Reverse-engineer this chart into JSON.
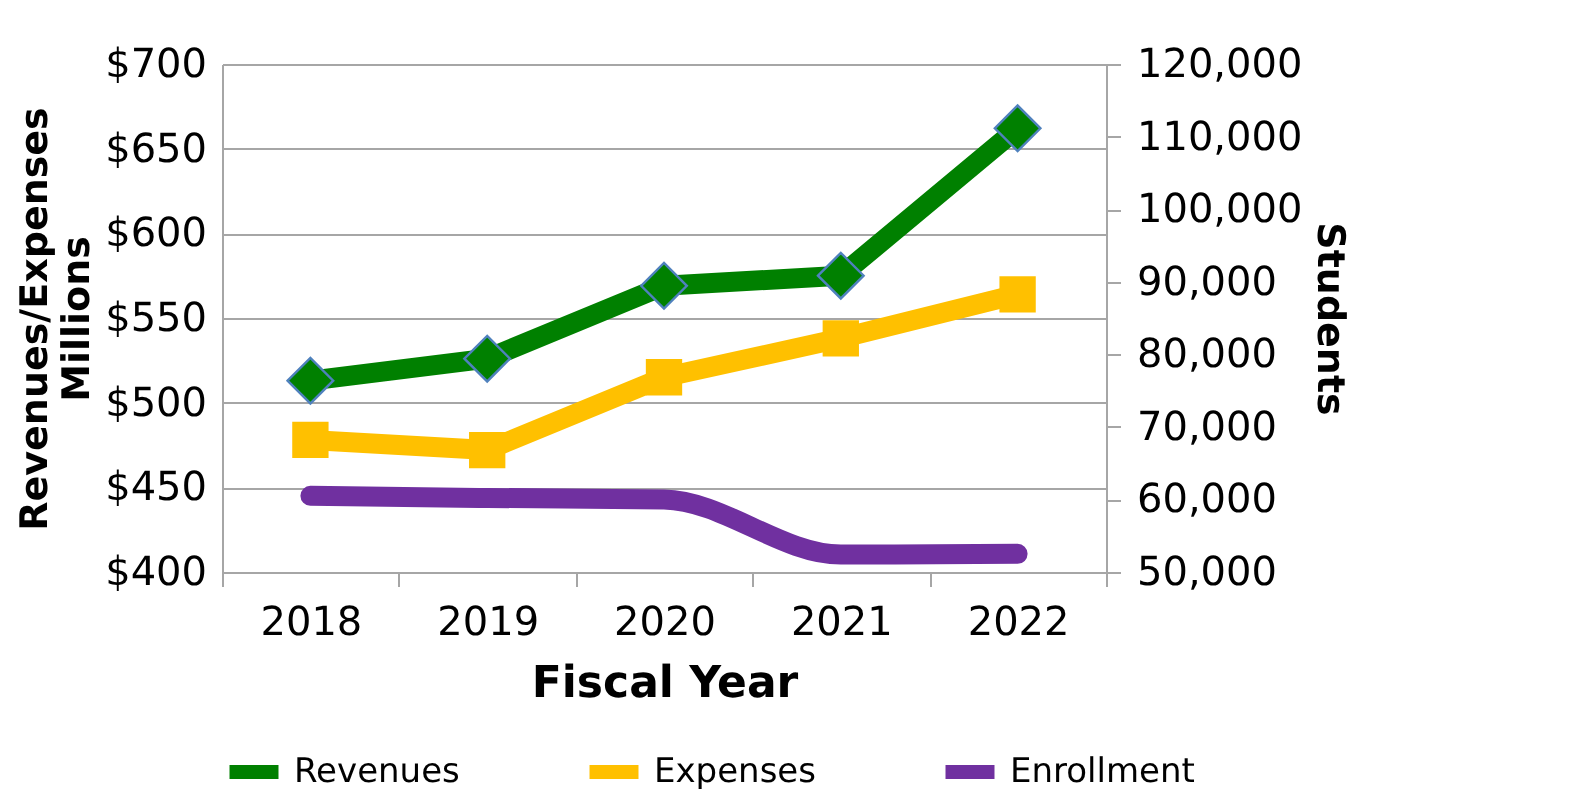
{
  "chart_data": {
    "type": "line",
    "xlabel": "Fiscal Year",
    "ylabel": "Revenues/Expenses\nMillions",
    "y2label": "Students",
    "categories": [
      "2018",
      "2019",
      "2020",
      "2021",
      "2022"
    ],
    "series": [
      {
        "name": "Revenues",
        "color": "#008000",
        "marker": "diamond",
        "values": [
          513,
          526,
          569,
          575,
          662
        ]
      },
      {
        "name": "Expenses",
        "color": "#ffc000",
        "marker": "square",
        "values": [
          478,
          472,
          515,
          538,
          564
        ]
      },
      {
        "name": "Enrollment",
        "color": "#7030a0",
        "marker": "none",
        "axis": "y2",
        "values": [
          60500,
          60200,
          60000,
          52400,
          52500
        ]
      }
    ],
    "ylim": [
      400,
      700
    ],
    "yticks": [
      {
        "value": 400,
        "label": "$400"
      },
      {
        "value": 450,
        "label": "$450"
      },
      {
        "value": 500,
        "label": "$500"
      },
      {
        "value": 550,
        "label": "$550"
      },
      {
        "value": 600,
        "label": "$600"
      },
      {
        "value": 650,
        "label": "$650"
      },
      {
        "value": 700,
        "label": "$700"
      }
    ],
    "y2lim": [
      50000,
      120000
    ],
    "y2ticks": [
      {
        "value": 50000,
        "label": "50,000"
      },
      {
        "value": 60000,
        "label": "60,000"
      },
      {
        "value": 70000,
        "label": "70,000"
      },
      {
        "value": 80000,
        "label": "80,000"
      },
      {
        "value": 90000,
        "label": "90,000"
      },
      {
        "value": 100000,
        "label": "100,000"
      },
      {
        "value": 110000,
        "label": "110,000"
      },
      {
        "value": 120000,
        "label": "120,000"
      }
    ],
    "grid": "y",
    "legend": "bottom",
    "line_style": "solid"
  }
}
